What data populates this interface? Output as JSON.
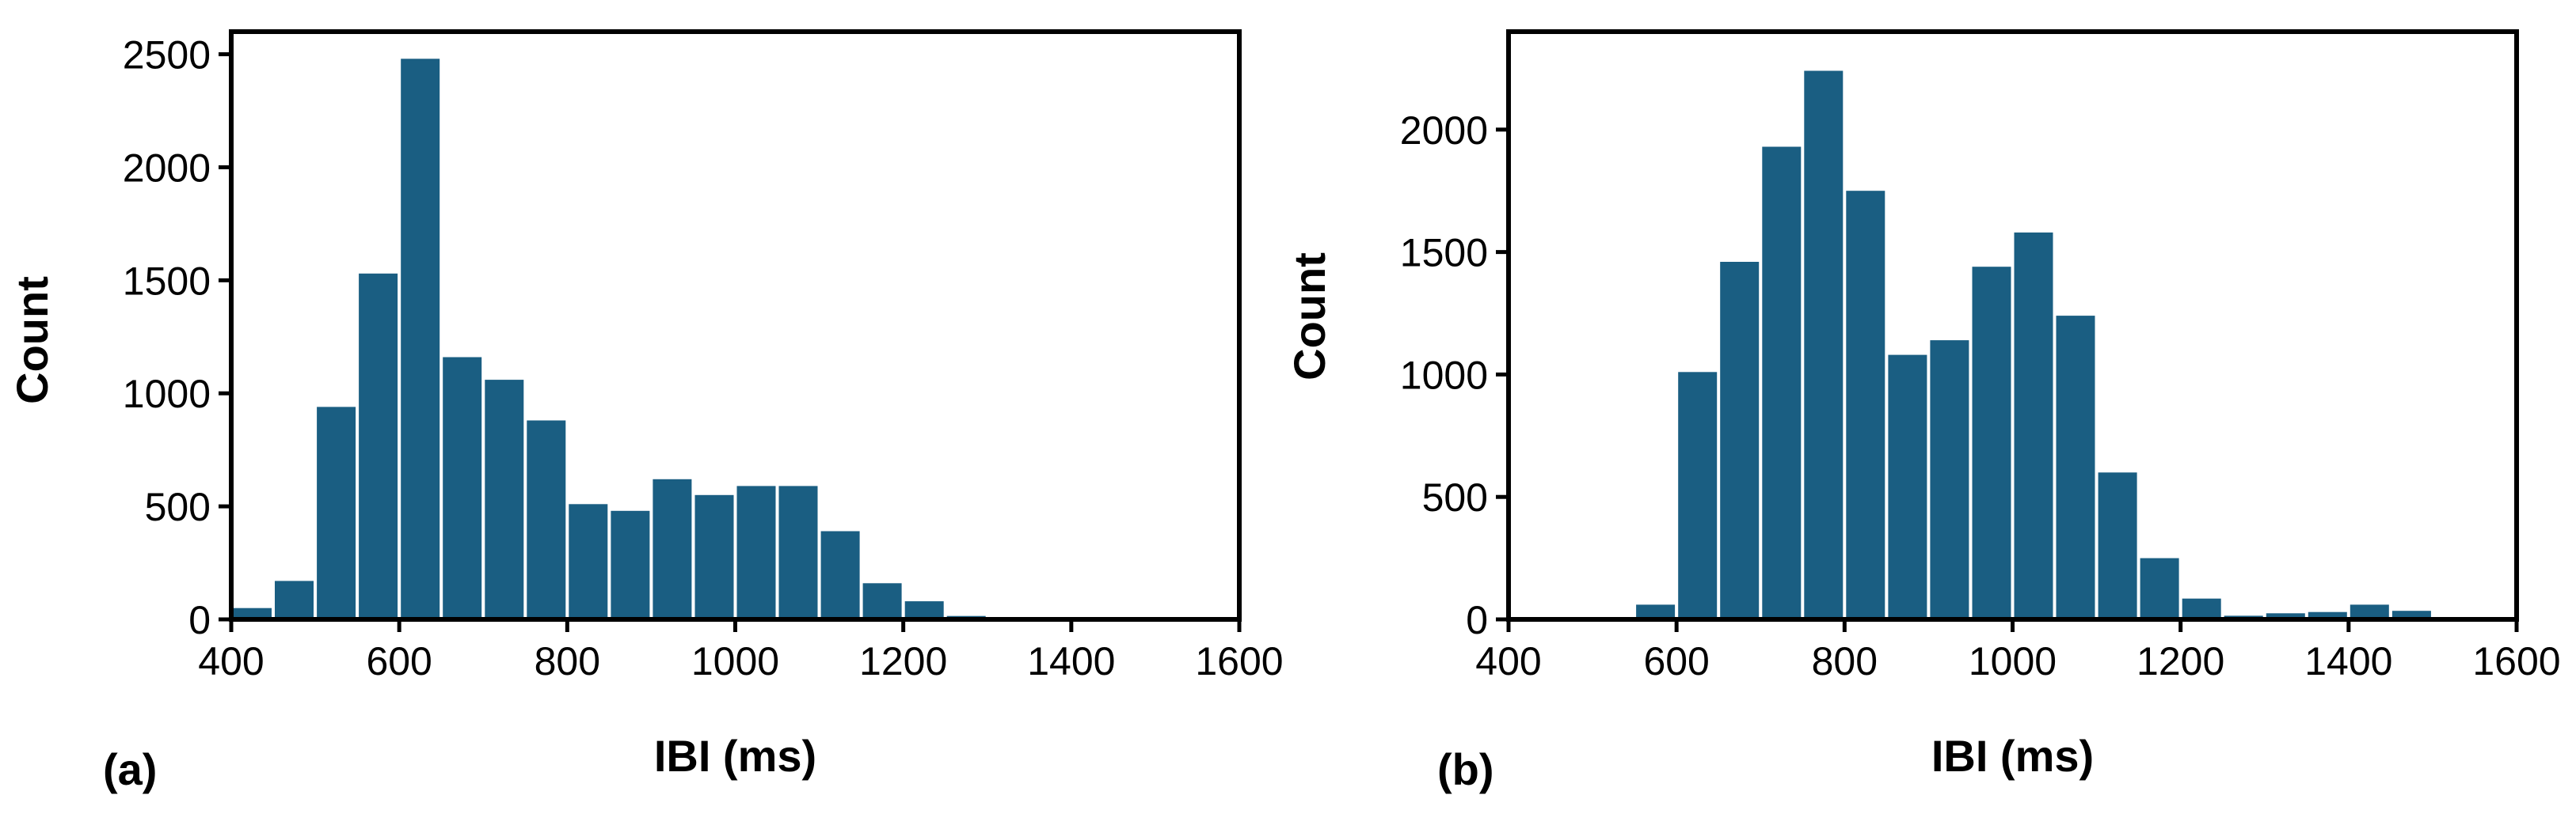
{
  "figure": {
    "bar_color": "#1a5e82",
    "axis_color": "#000000"
  },
  "chart_data": [
    {
      "type": "bar",
      "panel_label": "(a)",
      "xlabel": "IBI (ms)",
      "ylabel": "Count",
      "xlim": [
        400,
        1600
      ],
      "ylim": [
        0,
        2600
      ],
      "xticks": [
        400,
        600,
        800,
        1000,
        1200,
        1400,
        1600
      ],
      "yticks": [
        0,
        500,
        1000,
        1500,
        2000,
        2500
      ],
      "bin_width": 50,
      "bin_starts": [
        400,
        450,
        500,
        550,
        600,
        650,
        700,
        750,
        800,
        850,
        900,
        950,
        1000,
        1050,
        1100,
        1150,
        1200,
        1250,
        1300,
        1350,
        1400,
        1450,
        1500,
        1550
      ],
      "values": [
        50,
        170,
        940,
        1530,
        2480,
        1160,
        1060,
        880,
        510,
        480,
        620,
        550,
        590,
        590,
        390,
        160,
        80,
        15,
        5,
        3,
        2,
        2,
        2,
        2
      ]
    },
    {
      "type": "bar",
      "panel_label": "(b)",
      "xlabel": "IBI (ms)",
      "ylabel": "Count",
      "xlim": [
        400,
        1600
      ],
      "ylim": [
        0,
        2400
      ],
      "xticks": [
        400,
        600,
        800,
        1000,
        1200,
        1400,
        1600
      ],
      "yticks": [
        0,
        500,
        1000,
        1500,
        2000
      ],
      "bin_width": 50,
      "bin_starts": [
        400,
        450,
        500,
        550,
        600,
        650,
        700,
        750,
        800,
        850,
        900,
        950,
        1000,
        1050,
        1100,
        1150,
        1200,
        1250,
        1300,
        1350,
        1400,
        1450,
        1500,
        1550
      ],
      "values": [
        0,
        0,
        0,
        60,
        1010,
        1460,
        1930,
        2240,
        1750,
        1080,
        1140,
        1440,
        1580,
        1240,
        600,
        250,
        85,
        15,
        25,
        30,
        60,
        35,
        5,
        3
      ]
    }
  ]
}
